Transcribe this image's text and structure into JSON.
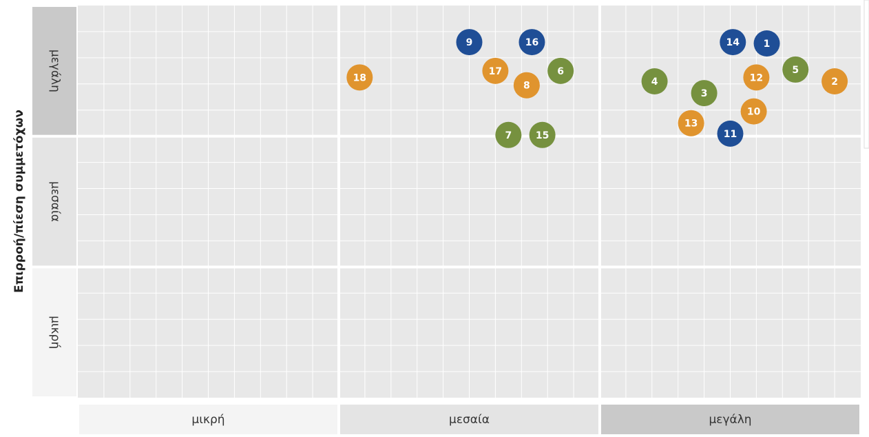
{
  "chart_data": {
    "type": "scatter",
    "ylabel": "Επιρροή/πίεση συμμετόχων",
    "x_categories": [
      "μικρή",
      "μεσαία",
      "μεγάλη"
    ],
    "y_categories": [
      "μικρή",
      "μεσαία",
      "μεγάλη"
    ],
    "xlim": [
      0,
      3
    ],
    "ylim": [
      0,
      3
    ],
    "labels": [
      "1",
      "2",
      "3",
      "4",
      "5",
      "6",
      "7",
      "8",
      "9",
      "10",
      "11",
      "12",
      "13",
      "14",
      "15",
      "16",
      "17",
      "18"
    ],
    "x": [
      2.64,
      2.9,
      2.4,
      2.21,
      2.75,
      1.85,
      1.65,
      1.72,
      1.5,
      2.59,
      2.5,
      2.6,
      2.35,
      2.51,
      1.78,
      1.74,
      1.6,
      1.08
    ],
    "y": [
      2.71,
      2.42,
      2.33,
      2.42,
      2.51,
      2.5,
      2.01,
      2.39,
      2.72,
      2.19,
      2.02,
      2.45,
      2.1,
      2.72,
      2.01,
      2.72,
      2.5,
      2.45
    ],
    "colors": [
      "#1f4e96",
      "#e0942e",
      "#76913f",
      "#76913f",
      "#76913f",
      "#76913f",
      "#76913f",
      "#e0942e",
      "#1f4e96",
      "#e0942e",
      "#1f4e96",
      "#e0942e",
      "#e0942e",
      "#1f4e96",
      "#76913f",
      "#1f4e96",
      "#e0942e",
      "#e0942e"
    ]
  }
}
